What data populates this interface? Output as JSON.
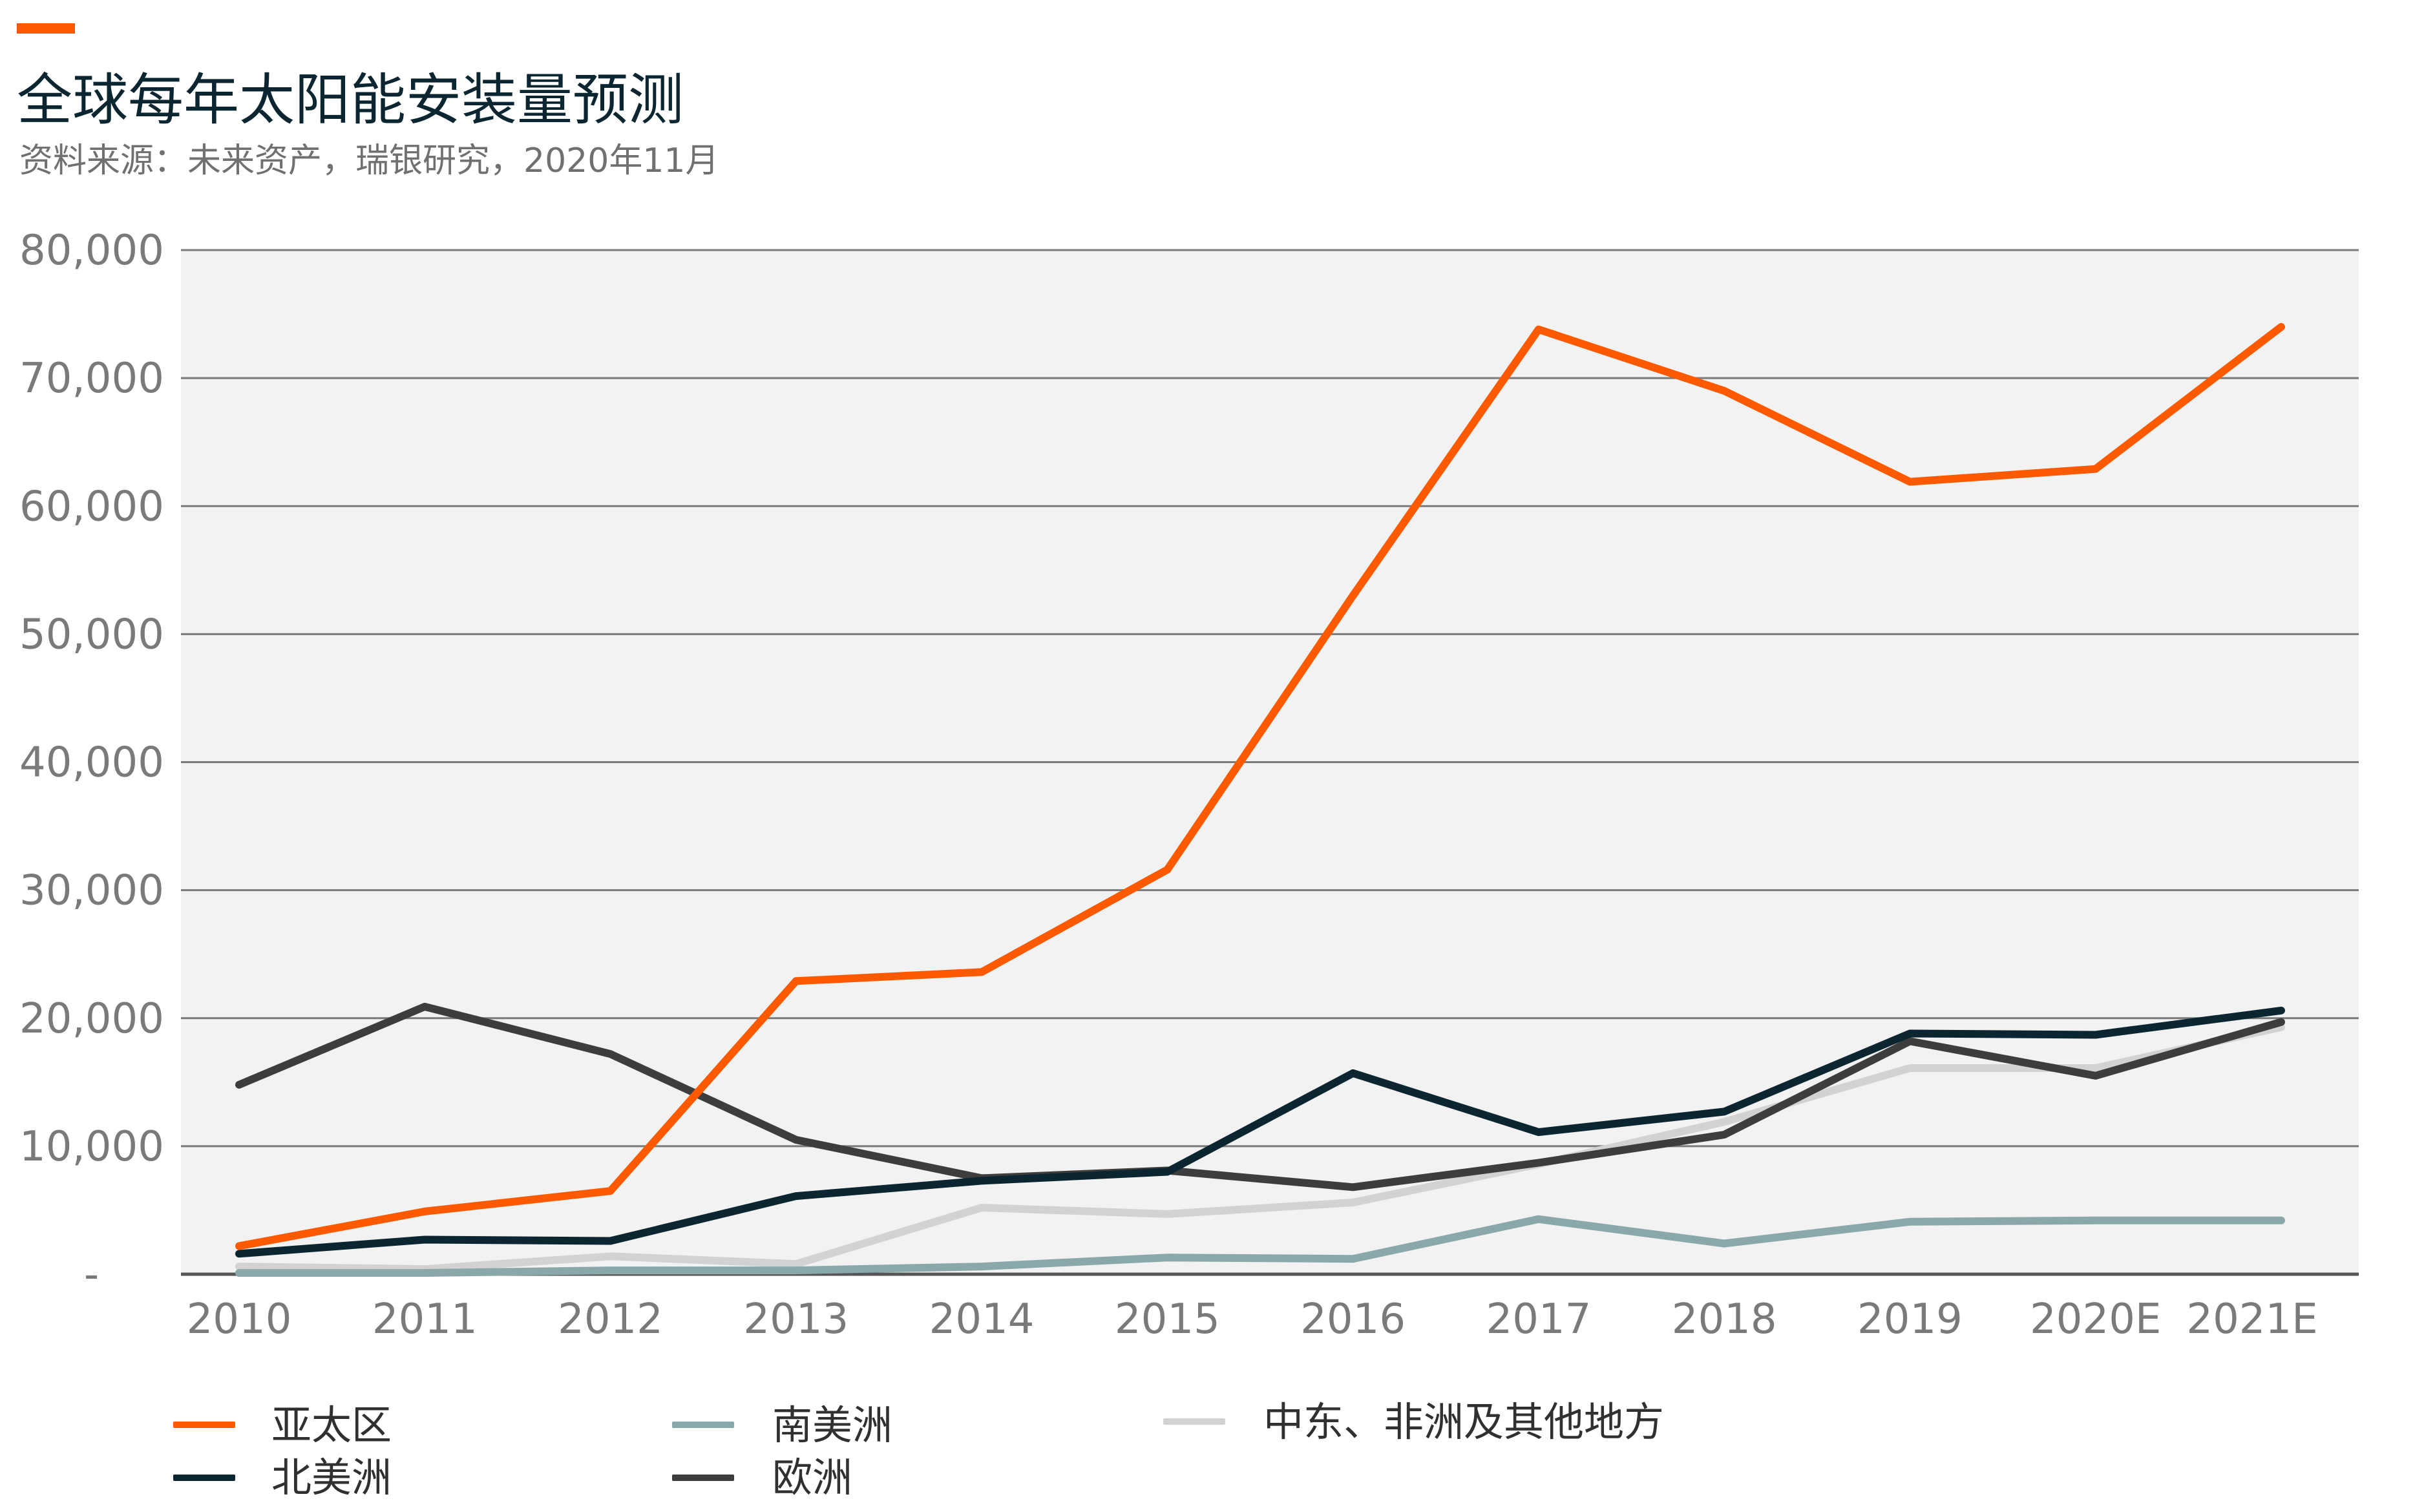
{
  "header": {
    "title": "全球每年太阳能安装量预测",
    "subtitle": "资料来源：未来资产，瑞银研究，2020年11月",
    "accent_color": "#fd5a00"
  },
  "chart_data": {
    "type": "line",
    "title": "全球每年太阳能安装量预测",
    "xlabel": "",
    "ylabel": "",
    "categories": [
      "2010",
      "2011",
      "2012",
      "2013",
      "2014",
      "2015",
      "2016",
      "2017",
      "2018",
      "2019",
      "2020E",
      "2021E"
    ],
    "ylim": [
      0,
      80000
    ],
    "yticks": [
      0,
      10000,
      20000,
      30000,
      40000,
      50000,
      60000,
      70000,
      80000
    ],
    "ytick_labels": [
      "-",
      "10,000",
      "20,000",
      "30,000",
      "40,000",
      "50,000",
      "60,000",
      "70,000",
      "80,000"
    ],
    "grid": "horizontal",
    "legend_position": "bottom",
    "series": [
      {
        "name": "亚太区",
        "color": "#fd5a00",
        "values": [
          2200,
          4900,
          6500,
          22900,
          23600,
          31600,
          53000,
          73800,
          69000,
          61900,
          62900,
          74000
        ]
      },
      {
        "name": "北美洲",
        "color": "#0b2630",
        "values": [
          1600,
          2700,
          2600,
          6100,
          7300,
          8000,
          15700,
          11100,
          12700,
          18800,
          18700,
          20600
        ]
      },
      {
        "name": "南美洲",
        "color": "#8aa7a9",
        "values": [
          100,
          100,
          300,
          300,
          600,
          1300,
          1200,
          4300,
          2400,
          4100,
          4200,
          4200
        ]
      },
      {
        "name": "欧洲",
        "color": "#3d3d3d",
        "values": [
          14800,
          20900,
          17200,
          10500,
          7500,
          8100,
          6800,
          8700,
          10900,
          18200,
          15500,
          19700
        ]
      },
      {
        "name": "中东、非洲及其他地方",
        "color": "#d2d2d2",
        "values": [
          600,
          400,
          1400,
          800,
          5200,
          4700,
          5600,
          8600,
          11900,
          16100,
          16100,
          19300
        ]
      }
    ]
  }
}
